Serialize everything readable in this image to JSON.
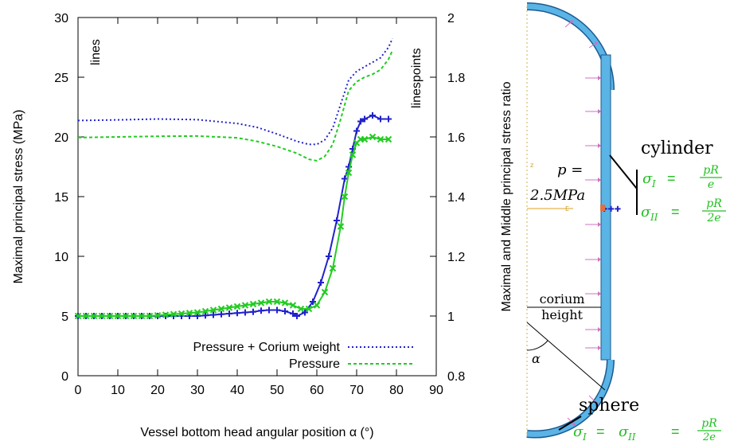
{
  "chart_data": {
    "type": "line",
    "title": "",
    "xlabel": "Vessel bottom head angular position α (°)",
    "ylabel": "Maximal principal stress (MPa)",
    "y2label": "Maximal and Middle principal stress ratio",
    "xlim": [
      0,
      90
    ],
    "ylim": [
      0,
      30
    ],
    "y2lim": [
      0.8,
      2
    ],
    "x_ticks": [
      "0",
      "10",
      "20",
      "30",
      "40",
      "50",
      "60",
      "70",
      "80",
      "90"
    ],
    "y_ticks": [
      "0",
      "5",
      "10",
      "15",
      "20",
      "25",
      "30"
    ],
    "y2_ticks": [
      "0.8",
      "1",
      "1.2",
      "1.4",
      "1.6",
      "1.8",
      "2"
    ],
    "grid": false,
    "legend_position": "bottom-right",
    "annotations": {
      "lines": "lines",
      "linespoints": "linespoints"
    },
    "series": [
      {
        "name": "Pressure + Corium weight",
        "color": "#2222cc",
        "style": "dotted",
        "axis": "right",
        "x": [
          0,
          10,
          20,
          30,
          40,
          45,
          50,
          55,
          58,
          60,
          62,
          64,
          66,
          68,
          70,
          72,
          74,
          76,
          78,
          79
        ],
        "values": [
          1.655,
          1.657,
          1.66,
          1.658,
          1.645,
          1.632,
          1.61,
          1.585,
          1.575,
          1.575,
          1.59,
          1.63,
          1.71,
          1.79,
          1.82,
          1.835,
          1.85,
          1.865,
          1.9,
          1.93
        ]
      },
      {
        "name": "Pressure",
        "color": "#22cc22",
        "style": "dashed",
        "axis": "right",
        "x": [
          0,
          10,
          20,
          30,
          40,
          45,
          50,
          55,
          58,
          60,
          62,
          64,
          66,
          68,
          70,
          72,
          74,
          76,
          78,
          79
        ],
        "values": [
          1.598,
          1.6,
          1.602,
          1.603,
          1.597,
          1.585,
          1.568,
          1.545,
          1.525,
          1.52,
          1.535,
          1.575,
          1.66,
          1.755,
          1.785,
          1.8,
          1.81,
          1.825,
          1.86,
          1.89
        ]
      },
      {
        "name": "",
        "color": "#2222cc",
        "style": "linespoints",
        "axis": "left",
        "x": [
          0,
          2,
          4,
          6,
          8,
          10,
          12,
          14,
          16,
          18,
          20,
          22,
          24,
          26,
          28,
          30,
          32,
          34,
          36,
          38,
          40,
          42,
          44,
          46,
          48,
          50,
          52,
          54,
          55,
          57,
          59,
          61,
          63,
          65,
          67,
          68,
          69,
          70,
          71,
          72,
          74,
          76,
          78
        ],
        "values": [
          5,
          5,
          5,
          5,
          5,
          5,
          5,
          5,
          5,
          5,
          5,
          5,
          5,
          5,
          5,
          5,
          5.05,
          5.1,
          5.15,
          5.2,
          5.25,
          5.3,
          5.35,
          5.45,
          5.5,
          5.5,
          5.4,
          5.2,
          5.0,
          5.3,
          6.2,
          7.8,
          10,
          13,
          16.5,
          17.5,
          19,
          20.5,
          21.3,
          21.5,
          21.8,
          21.5,
          21.5
        ]
      },
      {
        "name": "",
        "color": "#22cc22",
        "style": "linespoints",
        "axis": "left",
        "x": [
          0,
          2,
          4,
          6,
          8,
          10,
          12,
          14,
          16,
          18,
          20,
          22,
          24,
          26,
          28,
          30,
          32,
          34,
          36,
          38,
          40,
          42,
          44,
          46,
          48,
          50,
          52,
          54,
          56,
          58,
          60,
          62,
          64,
          66,
          67,
          68,
          69,
          70,
          71,
          72,
          74,
          76,
          78
        ],
        "values": [
          5,
          5,
          5,
          5,
          5,
          5,
          5,
          5,
          5,
          5,
          5.05,
          5.1,
          5.15,
          5.2,
          5.25,
          5.3,
          5.4,
          5.5,
          5.6,
          5.7,
          5.8,
          5.9,
          6.0,
          6.1,
          6.2,
          6.2,
          6.1,
          5.9,
          5.6,
          5.6,
          5.9,
          7.0,
          9,
          12.5,
          15,
          17,
          18.5,
          19.5,
          19.8,
          19.8,
          20,
          19.8,
          19.8
        ]
      }
    ]
  },
  "diagram": {
    "cylinder_label": "cylinder",
    "sphere_label": "sphere",
    "pressure_label": "p =",
    "pressure_value": "2.5MPa",
    "corium_label": "corium",
    "height_label": "height",
    "alpha_label": "α",
    "cyl_sigma_I_lhs": "σ",
    "cyl_sigma_I_sub": "I",
    "cyl_sigma_I_num": "pR",
    "cyl_sigma_I_den": "e",
    "cyl_sigma_II_lhs": "σ",
    "cyl_sigma_II_sub": "II",
    "cyl_sigma_II_num": "pR",
    "cyl_sigma_II_den": "2e",
    "sph_sigma_lhs1": "σ",
    "sph_sigma_sub1": "I",
    "sph_sigma_lhs2": "σ",
    "sph_sigma_sub2": "II",
    "sph_sigma_num": "pR",
    "sph_sigma_den": "2e",
    "equals": "=",
    "small_marks": [
      "z",
      "E"
    ],
    "colors": {
      "vessel": "#5ab4e6",
      "vessel_edge": "#1a5a90",
      "arrow": "#d070c0",
      "axis_dash": "#c8b050",
      "formula": "#22c022"
    }
  }
}
